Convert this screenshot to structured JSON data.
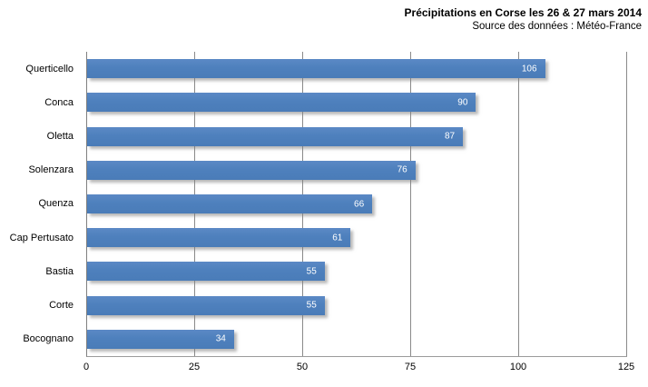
{
  "chart_data": {
    "type": "bar",
    "orientation": "horizontal",
    "title": "Précipitations en Corse les 26 & 27 mars 2014",
    "subtitle": "Source des données : Météo-France",
    "categories": [
      "Querticello",
      "Conca",
      "Oletta",
      "Solenzara",
      "Quenza",
      "Cap Pertusato",
      "Bastia",
      "Corte",
      "Bocognano"
    ],
    "values": [
      106,
      90,
      87,
      76,
      66,
      61,
      55,
      55,
      34
    ],
    "xlim": [
      0,
      125
    ],
    "xticks": [
      0,
      25,
      50,
      75,
      100,
      125
    ],
    "grid": true,
    "legend": false,
    "value_label_position": "inside-end",
    "colors": {
      "bar": "#4F81BD",
      "value_label": "#FFFFFF",
      "gridline": "#8A8A8A",
      "category_axis_line": "#7F7F7F",
      "value_axis_line": "#9B9B9B",
      "text": "#000000",
      "background": "#FFFFFF"
    }
  }
}
